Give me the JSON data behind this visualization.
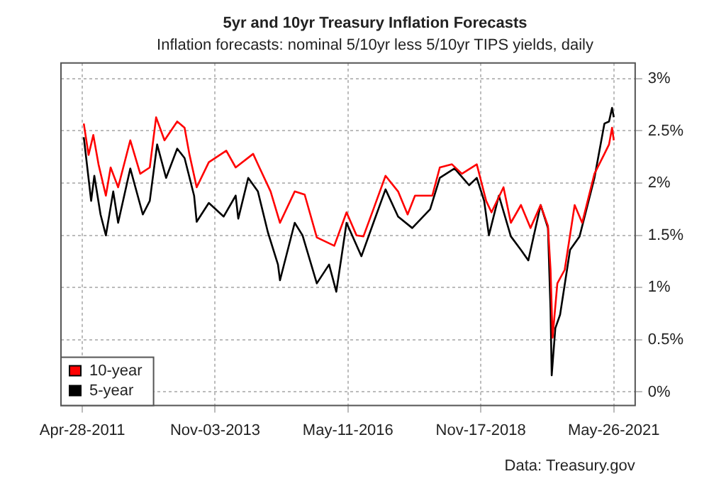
{
  "chart_data": {
    "type": "line",
    "title": "5yr and 10yr Treasury Inflation Forecasts",
    "subtitle": "Inflation forecasts: nominal 5/10yr less 5/10yr TIPS yields, daily",
    "annotations": [
      "Data: Treasury.gov"
    ],
    "xlim": [
      "2010-12-01",
      "2021-10-21"
    ],
    "xticks": [
      {
        "value": "2011-04-28",
        "label": "Apr-28-2011"
      },
      {
        "value": "2013-11-03",
        "label": "Nov-03-2013"
      },
      {
        "value": "2016-05-11",
        "label": "May-11-2016"
      },
      {
        "value": "2018-11-17",
        "label": "Nov-17-2018"
      },
      {
        "value": "2021-05-26",
        "label": "May-26-2021"
      }
    ],
    "ylim": [
      -0.13,
      3.15
    ],
    "yticks": [
      {
        "value": 0,
        "label": "0%"
      },
      {
        "value": 0.5,
        "label": "0.5%"
      },
      {
        "value": 1,
        "label": "1%"
      },
      {
        "value": 1.5,
        "label": "1.5%"
      },
      {
        "value": 2,
        "label": "2%"
      },
      {
        "value": 2.5,
        "label": "2.5%"
      },
      {
        "value": 3,
        "label": "3%"
      }
    ],
    "grid": true,
    "legend": "bottom left",
    "series": [
      {
        "name": "10-year",
        "color": "#ff0000",
        "x": [
          "2011-05-08",
          "2011-06-10",
          "2011-07-13",
          "2011-08-18",
          "2011-10-08",
          "2011-11-10",
          "2012-01-01",
          "2012-03-25",
          "2012-06-02",
          "2012-08-07",
          "2012-09-20",
          "2012-11-17",
          "2013-02-13",
          "2013-04-05",
          "2013-05-08",
          "2013-06-28",
          "2013-09-20",
          "2014-01-19",
          "2014-03-25",
          "2014-07-24",
          "2014-08-26",
          "2014-11-22",
          "2015-01-26",
          "2015-05-08",
          "2015-07-16",
          "2015-10-08",
          "2016-02-06",
          "2016-05-01",
          "2016-07-09",
          "2016-08-26",
          "2016-11-03",
          "2017-01-26",
          "2017-04-23",
          "2017-06-28",
          "2017-08-18",
          "2017-12-16",
          "2018-02-06",
          "2018-05-01",
          "2018-07-09",
          "2018-10-20",
          "2018-12-24",
          "2019-01-30",
          "2019-04-23",
          "2019-06-13",
          "2019-08-22",
          "2019-10-27",
          "2020-01-05",
          "2020-02-25",
          "2020-03-14",
          "2020-03-28",
          "2020-04-30",
          "2020-06-20",
          "2020-08-28",
          "2020-10-19",
          "2021-01-12",
          "2021-03-22",
          "2021-04-23",
          "2021-05-14",
          "2021-05-26"
        ],
        "values": [
          2.57,
          2.27,
          2.46,
          2.18,
          1.88,
          2.15,
          1.96,
          2.41,
          2.09,
          2.15,
          2.63,
          2.41,
          2.59,
          2.53,
          2.28,
          1.96,
          2.2,
          2.31,
          2.15,
          2.28,
          2.18,
          1.92,
          1.62,
          1.92,
          1.89,
          1.48,
          1.4,
          1.72,
          1.5,
          1.49,
          1.75,
          2.07,
          1.92,
          1.7,
          1.88,
          1.88,
          2.15,
          2.18,
          2.09,
          2.18,
          1.83,
          1.72,
          1.96,
          1.62,
          1.79,
          1.57,
          1.79,
          1.59,
          1.17,
          0.52,
          1.04,
          1.17,
          1.79,
          1.62,
          2.09,
          2.28,
          2.37,
          2.53,
          2.41
        ]
      },
      {
        "name": "5-year",
        "color": "#000000",
        "x": [
          "2011-05-08",
          "2011-06-28",
          "2011-07-20",
          "2011-09-01",
          "2011-10-08",
          "2011-11-28",
          "2012-01-01",
          "2012-03-25",
          "2012-06-20",
          "2012-08-07",
          "2012-09-27",
          "2012-11-28",
          "2013-02-13",
          "2013-04-05",
          "2013-06-10",
          "2013-06-28",
          "2013-09-20",
          "2014-01-01",
          "2014-03-25",
          "2014-04-12",
          "2014-06-20",
          "2014-08-26",
          "2014-11-03",
          "2015-01-12",
          "2015-01-26",
          "2015-05-08",
          "2015-07-01",
          "2015-10-08",
          "2016-01-01",
          "2016-02-20",
          "2016-05-01",
          "2016-08-12",
          "2016-11-03",
          "2017-01-26",
          "2017-04-23",
          "2017-07-30",
          "2017-12-01",
          "2018-02-06",
          "2018-05-19",
          "2018-08-28",
          "2018-10-20",
          "2018-12-10",
          "2019-01-12",
          "2019-03-22",
          "2019-06-13",
          "2019-08-22",
          "2019-10-12",
          "2020-01-05",
          "2020-02-25",
          "2020-03-14",
          "2020-03-22",
          "2020-04-16",
          "2020-05-19",
          "2020-07-27",
          "2020-10-01",
          "2021-01-12",
          "2021-03-22",
          "2021-04-23",
          "2021-05-14",
          "2021-05-26"
        ],
        "values": [
          2.44,
          1.83,
          2.07,
          1.7,
          1.5,
          1.92,
          1.62,
          2.14,
          1.7,
          1.83,
          2.37,
          2.05,
          2.33,
          2.24,
          1.88,
          1.63,
          1.81,
          1.68,
          1.88,
          1.66,
          2.05,
          1.92,
          1.53,
          1.22,
          1.07,
          1.62,
          1.5,
          1.04,
          1.22,
          0.96,
          1.62,
          1.3,
          1.62,
          1.94,
          1.68,
          1.57,
          1.75,
          2.05,
          2.14,
          1.98,
          2.05,
          1.83,
          1.5,
          1.88,
          1.49,
          1.36,
          1.26,
          1.79,
          1.57,
          0.78,
          0.16,
          0.61,
          0.74,
          1.36,
          1.49,
          2.05,
          2.57,
          2.59,
          2.72,
          2.63
        ]
      }
    ]
  }
}
